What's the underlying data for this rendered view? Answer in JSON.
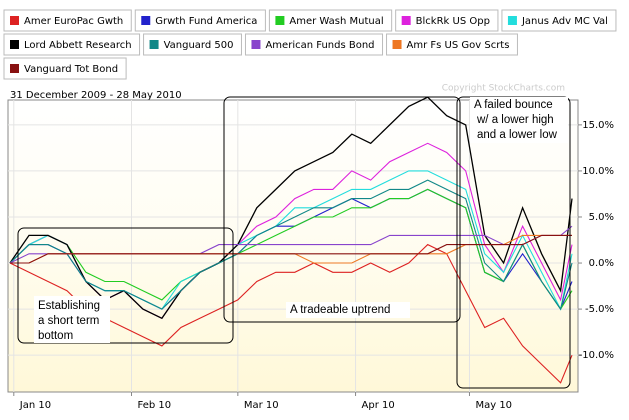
{
  "chart_data": {
    "type": "line",
    "subtitle": "31 December 2009 - 28 May 2010",
    "copyright": "Copyright StockCharts.com",
    "x": [
      0,
      5,
      10,
      15,
      20,
      25,
      30,
      35,
      40,
      45,
      50,
      55,
      60,
      65,
      70,
      75,
      80,
      85,
      90,
      95,
      100,
      105,
      110,
      115,
      120,
      125,
      130,
      135,
      140,
      145,
      148
    ],
    "xlim": [
      0,
      148
    ],
    "xticks": [
      {
        "value": 1,
        "label": "Jan 10"
      },
      {
        "value": 32,
        "label": "Feb 10"
      },
      {
        "value": 60,
        "label": "Mar 10"
      },
      {
        "value": 91,
        "label": "Apr 10"
      },
      {
        "value": 121,
        "label": "May 10"
      }
    ],
    "ylim": [
      -14,
      17.7
    ],
    "yticks": [
      {
        "value": 15,
        "label": "15.0%"
      },
      {
        "value": 10,
        "label": "10.0%"
      },
      {
        "value": 5,
        "label": "5.0%"
      },
      {
        "value": 0,
        "label": "0.0%"
      },
      {
        "value": -5,
        "label": "-5.0%"
      },
      {
        "value": -10,
        "label": "-10.0%"
      }
    ],
    "grid": true,
    "series": [
      {
        "name": "Amer EuroPac Gwth",
        "color": "#dd2222",
        "values": [
          0,
          -1,
          -2,
          -3,
          -5,
          -6,
          -7,
          -8,
          -9,
          -7,
          -6,
          -5,
          -4,
          -2,
          -1,
          -1,
          0,
          -1,
          -1,
          0,
          -1,
          0,
          2,
          1,
          -3,
          -7,
          -6,
          -9,
          -11,
          -13,
          -10
        ]
      },
      {
        "name": "Grwth Fund America",
        "color": "#2222cc",
        "values": [
          0,
          2,
          2,
          1,
          -2,
          -3,
          -3,
          -4,
          -5,
          -3,
          -1,
          0,
          1,
          3,
          4,
          4,
          5,
          6,
          7,
          6,
          7,
          7,
          8,
          7,
          6,
          -1,
          -2,
          1,
          -2,
          -5,
          -2
        ]
      },
      {
        "name": "Amer Wash Mutual",
        "color": "#22cc22",
        "values": [
          0,
          2,
          3,
          2,
          -1,
          -2,
          -2,
          -3,
          -4,
          -2,
          -1,
          0,
          1,
          2,
          3,
          4,
          5,
          5,
          6,
          6,
          7,
          7,
          8,
          7,
          6,
          -1,
          -2,
          2,
          -2,
          -5,
          -3
        ]
      },
      {
        "name": "BlckRk US Opp",
        "color": "#dd22dd",
        "values": [
          0,
          2,
          3,
          2,
          -2,
          -4,
          -3,
          -5,
          -6,
          -3,
          -1,
          0,
          2,
          4,
          5,
          7,
          8,
          8,
          10,
          9,
          11,
          12,
          13,
          12,
          10,
          2,
          -1,
          4,
          0,
          -4,
          2
        ]
      },
      {
        "name": "Janus Adv MC Val",
        "color": "#22dddd",
        "values": [
          0,
          2,
          3,
          2,
          -2,
          -3,
          -3,
          -4,
          -5,
          -2,
          -1,
          0,
          2,
          3,
          4,
          6,
          6,
          7,
          8,
          8,
          9,
          10,
          10,
          9,
          8,
          1,
          -1,
          3,
          -1,
          -5,
          1
        ]
      },
      {
        "name": "Lord Abbett Research",
        "color": "#000000",
        "values": [
          0,
          3,
          3,
          2,
          -2,
          -4,
          -3,
          -5,
          -6,
          -3,
          -1,
          0,
          2,
          6,
          8,
          10,
          11,
          12,
          14,
          13,
          15,
          17,
          18,
          16,
          15,
          3,
          0,
          6,
          1,
          -3,
          7
        ]
      },
      {
        "name": "Vanguard 500",
        "color": "#118888",
        "values": [
          0,
          2,
          2,
          1,
          -2,
          -3,
          -3,
          -4,
          -5,
          -3,
          -1,
          0,
          1,
          3,
          4,
          5,
          6,
          6,
          7,
          7,
          8,
          8,
          9,
          8,
          7,
          0,
          -2,
          2,
          -2,
          -5,
          0
        ]
      },
      {
        "name": "American Funds Bond",
        "color": "#8844cc",
        "values": [
          0,
          1,
          1,
          1,
          1,
          1,
          1,
          1,
          1,
          1,
          1,
          2,
          2,
          2,
          2,
          2,
          2,
          2,
          2,
          2,
          3,
          3,
          3,
          3,
          3,
          3,
          2,
          2,
          3,
          3,
          4
        ]
      },
      {
        "name": "Amr Fs US Gov Scrts",
        "color": "#ee7722",
        "values": [
          0,
          0,
          1,
          1,
          1,
          1,
          1,
          1,
          1,
          1,
          1,
          1,
          1,
          1,
          1,
          1,
          0,
          0,
          0,
          1,
          1,
          1,
          1,
          1,
          2,
          2,
          2,
          3,
          3,
          3,
          3
        ]
      },
      {
        "name": "Vanguard Tot Bond",
        "color": "#881111",
        "values": [
          0,
          0,
          1,
          1,
          1,
          1,
          1,
          1,
          1,
          1,
          1,
          1,
          1,
          1,
          1,
          1,
          1,
          1,
          1,
          1,
          1,
          1,
          1,
          2,
          2,
          2,
          2,
          2,
          3,
          3,
          3
        ]
      }
    ],
    "annotations": [
      [
        "Establishing",
        "a short term",
        "bottom"
      ],
      [
        "A tradeable uptrend"
      ],
      [
        "A failed bounce",
        "w/ a lower high",
        "and a lower low"
      ]
    ]
  }
}
